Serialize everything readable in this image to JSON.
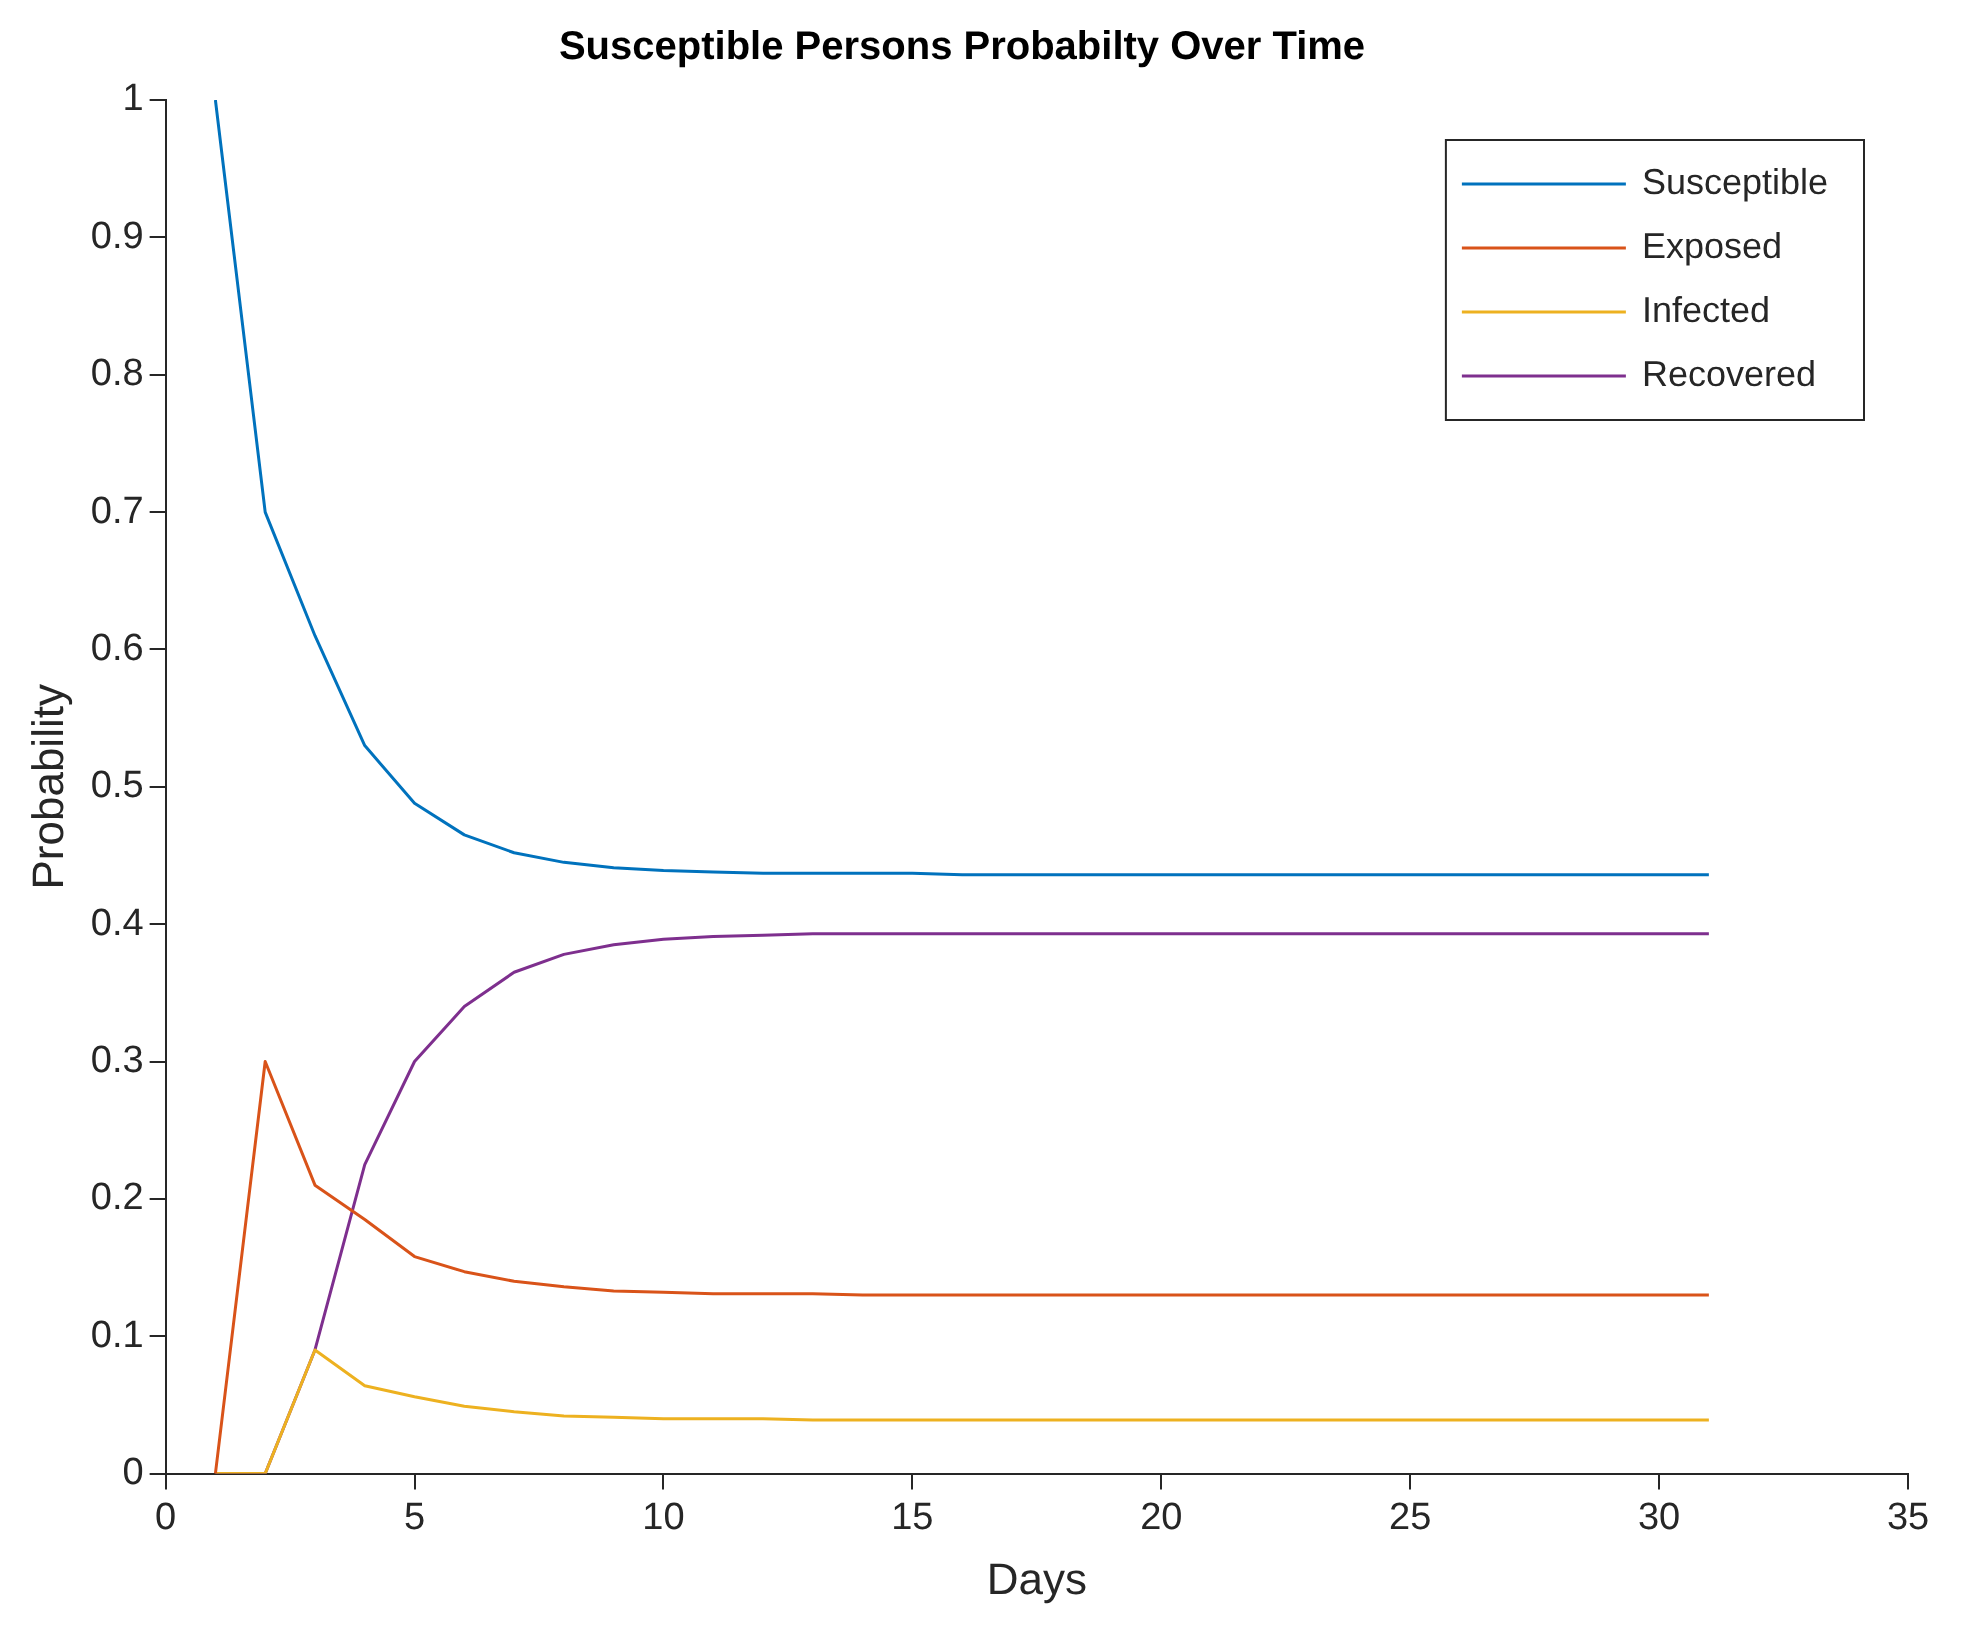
{
  "chart_data": {
    "type": "line",
    "title": "Susceptible Persons Probabilty Over Time",
    "xlabel": "Days",
    "ylabel": "Probability",
    "x": [
      1,
      2,
      3,
      4,
      5,
      6,
      7,
      8,
      9,
      10,
      11,
      12,
      13,
      14,
      15,
      16,
      17,
      18,
      19,
      20,
      21,
      22,
      23,
      24,
      25,
      26,
      27,
      28,
      29,
      30,
      31
    ],
    "series": [
      {
        "name": "Susceptible",
        "color": "#0072bd",
        "values": [
          1,
          0.7,
          0.61,
          0.53,
          0.488,
          0.465,
          0.452,
          0.445,
          0.441,
          0.439,
          0.438,
          0.437,
          0.437,
          0.437,
          0.437,
          0.436,
          0.436,
          0.436,
          0.436,
          0.436,
          0.436,
          0.436,
          0.436,
          0.436,
          0.436,
          0.436,
          0.436,
          0.436,
          0.436,
          0.436,
          0.436
        ]
      },
      {
        "name": "Exposed",
        "color": "#d95319",
        "values": [
          0,
          0.3,
          0.21,
          0.185,
          0.158,
          0.147,
          0.14,
          0.136,
          0.133,
          0.132,
          0.131,
          0.131,
          0.131,
          0.13,
          0.13,
          0.13,
          0.13,
          0.13,
          0.13,
          0.13,
          0.13,
          0.13,
          0.13,
          0.13,
          0.13,
          0.13,
          0.13,
          0.13,
          0.13,
          0.13,
          0.13
        ]
      },
      {
        "name": "Infected",
        "color": "#edb120",
        "values": [
          0,
          0,
          0.09,
          0.064,
          0.056,
          0.049,
          0.045,
          0.042,
          0.041,
          0.04,
          0.04,
          0.04,
          0.039,
          0.039,
          0.039,
          0.039,
          0.039,
          0.039,
          0.039,
          0.039,
          0.039,
          0.039,
          0.039,
          0.039,
          0.039,
          0.039,
          0.039,
          0.039,
          0.039,
          0.039,
          0.039
        ]
      },
      {
        "name": "Recovered",
        "color": "#7e2f8e",
        "values": [
          0,
          0,
          0.09,
          0.225,
          0.3,
          0.34,
          0.365,
          0.378,
          0.385,
          0.389,
          0.391,
          0.392,
          0.393,
          0.393,
          0.393,
          0.393,
          0.393,
          0.393,
          0.393,
          0.393,
          0.393,
          0.393,
          0.393,
          0.393,
          0.393,
          0.393,
          0.393,
          0.393,
          0.393,
          0.393,
          0.393
        ]
      }
    ],
    "xlim": [
      0,
      35
    ],
    "xticks": [
      0,
      5,
      10,
      15,
      20,
      25,
      30,
      35
    ],
    "ylim": [
      0,
      1
    ],
    "yticks": [
      0,
      0.1,
      0.2,
      0.3,
      0.4,
      0.5,
      0.6,
      0.7,
      0.8,
      0.9,
      1
    ],
    "grid": false,
    "legend": "top right",
    "marker": "none",
    "line_style": "solid"
  }
}
